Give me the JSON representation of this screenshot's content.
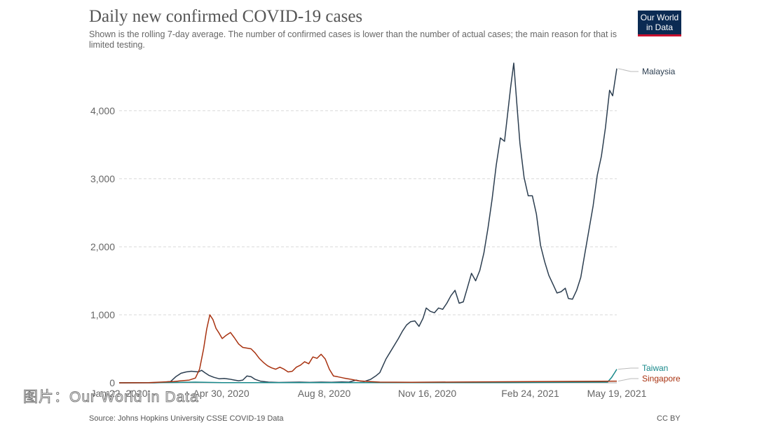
{
  "header": {
    "title": "Daily new confirmed COVID-19 cases",
    "subtitle": "Shown is the rolling 7-day average. The number of confirmed cases is lower than the number of actual cases; the main reason for that is limited testing.",
    "logo_line1": "Our World",
    "logo_line2": "in Data"
  },
  "footer": {
    "source": "Source: Johns Hopkins University CSSE COVID-19 Data",
    "license": "CC BY"
  },
  "watermark": "图片：Our World in Data",
  "colors": {
    "malaysia": "#2c3e50",
    "taiwan": "#18898b",
    "singapore": "#a83210",
    "grid": "#d8d8d8",
    "logo_bg": "#0b2b53",
    "logo_accent": "#c8102e"
  },
  "chart_data": {
    "type": "line",
    "title": "Daily new confirmed COVID-19 cases",
    "xlabel": "",
    "ylabel": "",
    "x_ticks": [
      "Jan 22, 2020",
      "Apr 30, 2020",
      "Aug 8, 2020",
      "Nov 16, 2020",
      "Feb 24, 2021",
      "May 19, 2021"
    ],
    "x_range": [
      "2020-01-22",
      "2021-05-19"
    ],
    "y_ticks": [
      0,
      1000,
      2000,
      3000,
      4000
    ],
    "y_tick_labels": [
      "0",
      "1,000",
      "2,000",
      "3,000",
      "4,000"
    ],
    "ylim": [
      0,
      4700
    ],
    "grid": "horizontal dashed",
    "legend": "line-end labels",
    "series": [
      {
        "name": "Malaysia",
        "points": [
          [
            "2020-01-22",
            0
          ],
          [
            "2020-02-25",
            0
          ],
          [
            "2020-03-01",
            2
          ],
          [
            "2020-03-12",
            20
          ],
          [
            "2020-03-17",
            90
          ],
          [
            "2020-03-22",
            140
          ],
          [
            "2020-03-27",
            160
          ],
          [
            "2020-04-01",
            170
          ],
          [
            "2020-04-05",
            165
          ],
          [
            "2020-04-08",
            160
          ],
          [
            "2020-04-11",
            185
          ],
          [
            "2020-04-14",
            150
          ],
          [
            "2020-04-18",
            110
          ],
          [
            "2020-04-23",
            80
          ],
          [
            "2020-04-28",
            60
          ],
          [
            "2020-05-03",
            65
          ],
          [
            "2020-05-08",
            55
          ],
          [
            "2020-05-13",
            40
          ],
          [
            "2020-05-17",
            30
          ],
          [
            "2020-05-21",
            40
          ],
          [
            "2020-05-25",
            100
          ],
          [
            "2020-05-29",
            90
          ],
          [
            "2020-06-02",
            50
          ],
          [
            "2020-06-07",
            25
          ],
          [
            "2020-06-15",
            10
          ],
          [
            "2020-06-25",
            5
          ],
          [
            "2020-07-05",
            8
          ],
          [
            "2020-07-15",
            10
          ],
          [
            "2020-07-25",
            6
          ],
          [
            "2020-08-05",
            10
          ],
          [
            "2020-08-15",
            8
          ],
          [
            "2020-08-25",
            12
          ],
          [
            "2020-09-01",
            10
          ],
          [
            "2020-09-08",
            40
          ],
          [
            "2020-09-12",
            25
          ],
          [
            "2020-09-16",
            20
          ],
          [
            "2020-09-22",
            50
          ],
          [
            "2020-09-27",
            100
          ],
          [
            "2020-10-01",
            150
          ],
          [
            "2020-10-04",
            250
          ],
          [
            "2020-10-07",
            350
          ],
          [
            "2020-10-11",
            450
          ],
          [
            "2020-10-15",
            550
          ],
          [
            "2020-10-19",
            650
          ],
          [
            "2020-10-23",
            760
          ],
          [
            "2020-10-27",
            850
          ],
          [
            "2020-10-31",
            900
          ],
          [
            "2020-11-04",
            910
          ],
          [
            "2020-11-08",
            830
          ],
          [
            "2020-11-12",
            950
          ],
          [
            "2020-11-15",
            1100
          ],
          [
            "2020-11-19",
            1050
          ],
          [
            "2020-11-23",
            1030
          ],
          [
            "2020-11-27",
            1100
          ],
          [
            "2020-12-01",
            1080
          ],
          [
            "2020-12-05",
            1170
          ],
          [
            "2020-12-09",
            1280
          ],
          [
            "2020-12-13",
            1360
          ],
          [
            "2020-12-17",
            1170
          ],
          [
            "2020-12-21",
            1190
          ],
          [
            "2020-12-25",
            1400
          ],
          [
            "2020-12-29",
            1610
          ],
          [
            "2021-01-02",
            1500
          ],
          [
            "2021-01-06",
            1650
          ],
          [
            "2021-01-10",
            1910
          ],
          [
            "2021-01-14",
            2280
          ],
          [
            "2021-01-18",
            2700
          ],
          [
            "2021-01-22",
            3200
          ],
          [
            "2021-01-26",
            3600
          ],
          [
            "2021-01-30",
            3550
          ],
          [
            "2021-02-02",
            3950
          ],
          [
            "2021-02-05",
            4350
          ],
          [
            "2021-02-08",
            4700
          ],
          [
            "2021-02-11",
            4100
          ],
          [
            "2021-02-14",
            3520
          ],
          [
            "2021-02-18",
            3020
          ],
          [
            "2021-02-22",
            2750
          ],
          [
            "2021-02-26",
            2750
          ],
          [
            "2021-03-02",
            2480
          ],
          [
            "2021-03-06",
            2020
          ],
          [
            "2021-03-10",
            1780
          ],
          [
            "2021-03-14",
            1580
          ],
          [
            "2021-03-18",
            1450
          ],
          [
            "2021-03-22",
            1320
          ],
          [
            "2021-03-26",
            1340
          ],
          [
            "2021-03-30",
            1390
          ],
          [
            "2021-04-02",
            1240
          ],
          [
            "2021-04-06",
            1230
          ],
          [
            "2021-04-10",
            1360
          ],
          [
            "2021-04-14",
            1550
          ],
          [
            "2021-04-18",
            1900
          ],
          [
            "2021-04-22",
            2250
          ],
          [
            "2021-04-26",
            2600
          ],
          [
            "2021-04-30",
            3050
          ],
          [
            "2021-05-04",
            3330
          ],
          [
            "2021-05-08",
            3750
          ],
          [
            "2021-05-12",
            4300
          ],
          [
            "2021-05-15",
            4220
          ],
          [
            "2021-05-19",
            4620
          ]
        ]
      },
      {
        "name": "Taiwan",
        "points": [
          [
            "2020-01-22",
            0
          ],
          [
            "2020-03-15",
            5
          ],
          [
            "2020-04-05",
            10
          ],
          [
            "2020-05-01",
            2
          ],
          [
            "2020-12-01",
            2
          ],
          [
            "2021-02-01",
            3
          ],
          [
            "2021-05-10",
            10
          ],
          [
            "2021-05-14",
            80
          ],
          [
            "2021-05-17",
            150
          ],
          [
            "2021-05-19",
            200
          ]
        ]
      },
      {
        "name": "Singapore",
        "points": [
          [
            "2020-01-22",
            0
          ],
          [
            "2020-02-20",
            3
          ],
          [
            "2020-03-15",
            20
          ],
          [
            "2020-03-30",
            40
          ],
          [
            "2020-04-05",
            70
          ],
          [
            "2020-04-09",
            200
          ],
          [
            "2020-04-13",
            500
          ],
          [
            "2020-04-16",
            790
          ],
          [
            "2020-04-19",
            1000
          ],
          [
            "2020-04-22",
            930
          ],
          [
            "2020-04-25",
            800
          ],
          [
            "2020-04-28",
            730
          ],
          [
            "2020-05-01",
            650
          ],
          [
            "2020-05-05",
            700
          ],
          [
            "2020-05-09",
            740
          ],
          [
            "2020-05-13",
            660
          ],
          [
            "2020-05-17",
            570
          ],
          [
            "2020-05-21",
            520
          ],
          [
            "2020-05-25",
            510
          ],
          [
            "2020-05-29",
            500
          ],
          [
            "2020-06-02",
            440
          ],
          [
            "2020-06-06",
            360
          ],
          [
            "2020-06-10",
            300
          ],
          [
            "2020-06-14",
            250
          ],
          [
            "2020-06-18",
            220
          ],
          [
            "2020-06-22",
            200
          ],
          [
            "2020-06-26",
            230
          ],
          [
            "2020-06-30",
            200
          ],
          [
            "2020-07-04",
            160
          ],
          [
            "2020-07-08",
            170
          ],
          [
            "2020-07-12",
            230
          ],
          [
            "2020-07-16",
            260
          ],
          [
            "2020-07-20",
            310
          ],
          [
            "2020-07-24",
            280
          ],
          [
            "2020-07-28",
            380
          ],
          [
            "2020-08-01",
            360
          ],
          [
            "2020-08-05",
            420
          ],
          [
            "2020-08-09",
            350
          ],
          [
            "2020-08-13",
            200
          ],
          [
            "2020-08-17",
            100
          ],
          [
            "2020-08-21",
            90
          ],
          [
            "2020-08-27",
            70
          ],
          [
            "2020-09-02",
            55
          ],
          [
            "2020-09-10",
            30
          ],
          [
            "2020-09-20",
            20
          ],
          [
            "2020-10-01",
            10
          ],
          [
            "2020-11-01",
            8
          ],
          [
            "2021-05-19",
            25
          ]
        ]
      }
    ]
  }
}
